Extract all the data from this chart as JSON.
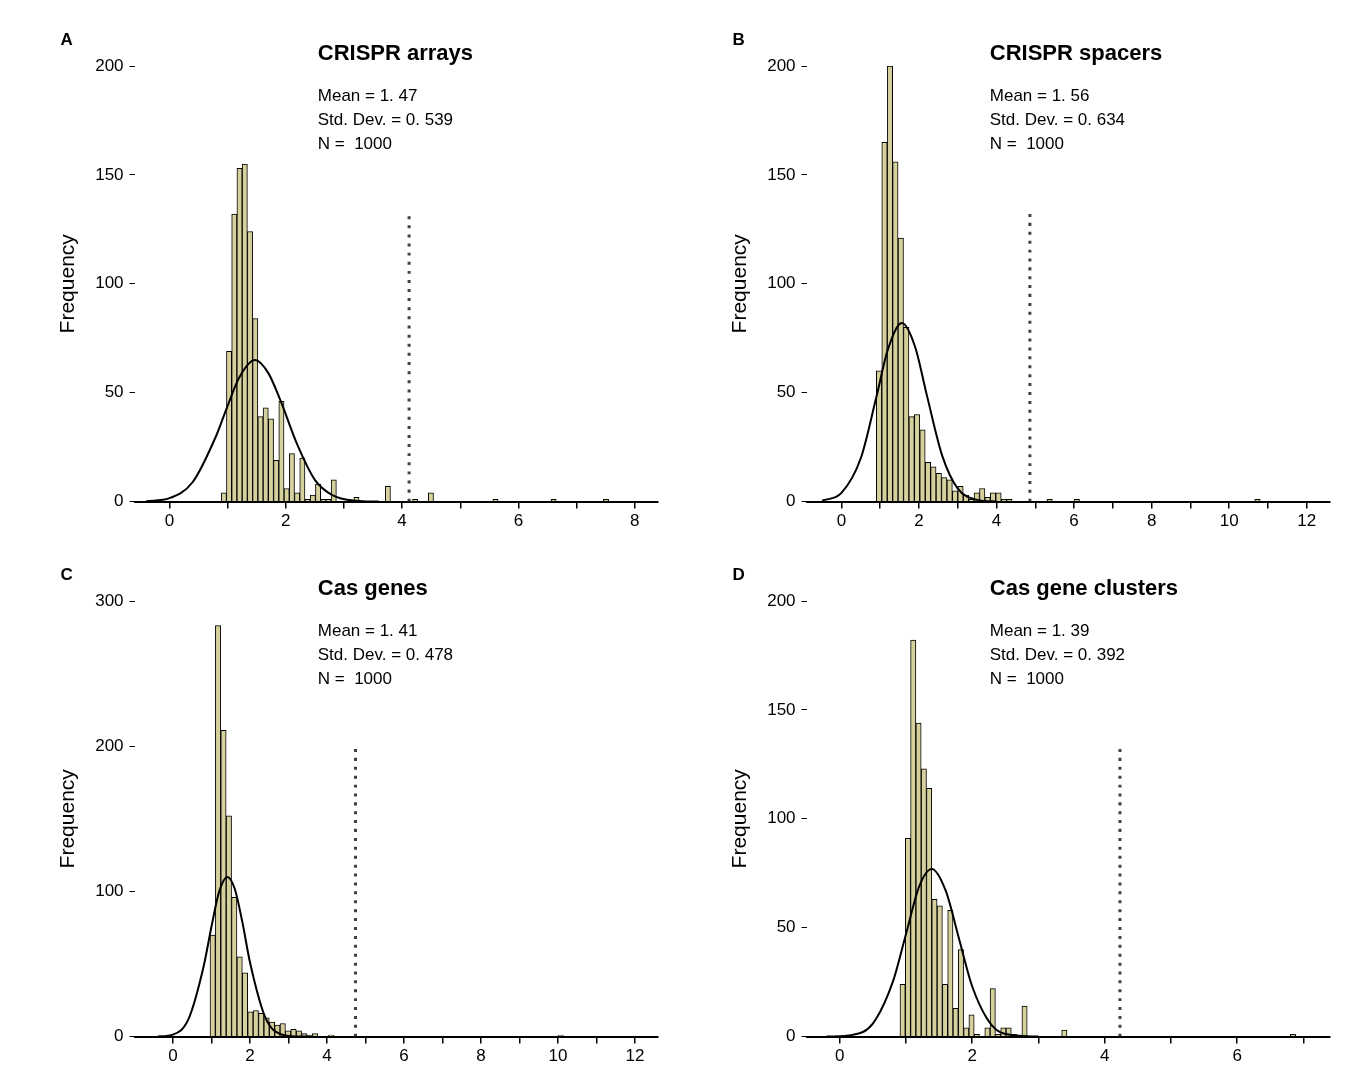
{
  "chart_data": [
    {
      "type": "histogram",
      "title": "CRISPR arrays",
      "ylabel": "Frequency",
      "annotations": [
        "A",
        "Mean = 1. 47",
        "Std. Dev. = 0. 539",
        "N =  1000"
      ],
      "xlim": [
        -0.6,
        8.4
      ],
      "xticks": [
        0,
        {
          "value": 1,
          "label": null
        },
        2,
        {
          "value": 3,
          "label": null
        },
        4,
        {
          "value": 5,
          "label": null
        },
        6,
        {
          "value": 7,
          "label": null
        },
        8
      ],
      "ylim": [
        0,
        200
      ],
      "yticks": [
        0,
        50,
        100,
        150,
        200
      ],
      "grid": false,
      "legend": false,
      "series": [
        {
          "type": "histogram",
          "color": "#d6d19c",
          "bins": [
            0.89,
            0.98,
            1.07,
            1.16,
            1.25,
            1.34,
            1.43,
            1.52,
            1.61,
            1.7,
            1.79,
            1.88,
            1.97,
            2.06,
            2.15,
            2.24,
            2.33,
            2.42,
            2.51,
            2.6,
            2.69,
            2.78,
            2.87,
            3.17,
            3.26,
            3.71,
            3.8,
            4.18,
            4.27,
            4.45,
            4.54,
            5.56,
            5.65,
            6.56,
            6.65,
            7.46,
            7.55
          ],
          "values": [
            4,
            69,
            132,
            153,
            155,
            124,
            84,
            39,
            43,
            38,
            19,
            46,
            6,
            22,
            4,
            20,
            1,
            3,
            8,
            1,
            1,
            10,
            0,
            2,
            0,
            7,
            0,
            1,
            0,
            4,
            0,
            1,
            0,
            1,
            0,
            1
          ]
        },
        {
          "type": "line",
          "color": "#000000",
          "x": [
            -0.4,
            0,
            0.4,
            0.8,
            1.0,
            1.2,
            1.47,
            1.7,
            1.9,
            2.2,
            2.5,
            2.8,
            3.2,
            3.6
          ],
          "values": [
            0.2,
            1.6,
            9,
            30,
            44,
            57,
            65,
            59,
            47,
            26,
            10,
            3,
            0.4,
            0
          ]
        },
        {
          "type": "line",
          "color": "#404040",
          "line_style": "dotted",
          "x": [
            4.12,
            4.12
          ],
          "values": [
            0,
            131
          ]
        }
      ]
    },
    {
      "type": "histogram",
      "title": "CRISPR spacers",
      "ylabel": "Frequency",
      "annotations": [
        "B",
        "Mean = 1. 56",
        "Std. Dev. = 0. 634",
        "N =  1000"
      ],
      "xlim": [
        -0.9,
        12.6
      ],
      "xticks": [
        0,
        {
          "value": 1,
          "label": null
        },
        2,
        {
          "value": 3,
          "label": null
        },
        4,
        {
          "value": 5,
          "label": null
        },
        6,
        {
          "value": 7,
          "label": null
        },
        8,
        {
          "value": 9,
          "label": null
        },
        10,
        {
          "value": 11,
          "label": null
        },
        12
      ],
      "ylim": [
        0,
        200
      ],
      "yticks": [
        0,
        50,
        100,
        150,
        200
      ],
      "grid": false,
      "legend": false,
      "series": [
        {
          "type": "histogram",
          "color": "#d6d19c",
          "bins": [
            0.9,
            1.04,
            1.18,
            1.32,
            1.46,
            1.6,
            1.74,
            1.88,
            2.02,
            2.16,
            2.3,
            2.44,
            2.58,
            2.72,
            2.86,
            3.0,
            3.14,
            3.28,
            3.42,
            3.56,
            3.7,
            3.84,
            3.98,
            4.12,
            4.26,
            4.4,
            5.3,
            5.44,
            6.0,
            6.14,
            10.66,
            10.8
          ],
          "values": [
            60,
            165,
            200,
            156,
            121,
            80,
            39,
            40,
            33,
            18,
            16,
            13,
            11,
            10,
            5,
            7,
            3,
            1,
            4,
            6,
            2,
            4,
            4,
            1,
            1,
            0,
            1,
            0,
            1,
            0,
            1
          ]
        },
        {
          "type": "line",
          "color": "#000000",
          "x": [
            -0.5,
            0,
            0.5,
            0.9,
            1.2,
            1.56,
            1.9,
            2.2,
            2.6,
            3.0,
            3.5,
            4.0
          ],
          "values": [
            0.4,
            4,
            20,
            48,
            70,
            82,
            71,
            49,
            21,
            6,
            0.8,
            0
          ]
        },
        {
          "type": "line",
          "color": "#404040",
          "line_style": "dotted",
          "x": [
            4.86,
            4.86
          ],
          "values": [
            0,
            132
          ]
        }
      ]
    },
    {
      "type": "histogram",
      "title": "Cas genes",
      "ylabel": "Frequency",
      "annotations": [
        "C",
        "Mean = 1. 41",
        "Std. Dev. = 0. 478",
        "N =  1000"
      ],
      "xlim": [
        -1.0,
        12.6
      ],
      "xticks": [
        0,
        {
          "value": 1,
          "label": null
        },
        2,
        {
          "value": 3,
          "label": null
        },
        4,
        {
          "value": 5,
          "label": null
        },
        6,
        {
          "value": 7,
          "label": null
        },
        8,
        {
          "value": 9,
          "label": null
        },
        10,
        {
          "value": 11,
          "label": null
        },
        12
      ],
      "ylim": [
        0,
        300
      ],
      "yticks": [
        0,
        100,
        200,
        300
      ],
      "grid": false,
      "legend": false,
      "series": [
        {
          "type": "histogram",
          "color": "#d6d19c",
          "bins": [
            0.96,
            1.1,
            1.24,
            1.38,
            1.52,
            1.66,
            1.8,
            1.94,
            2.08,
            2.22,
            2.36,
            2.5,
            2.64,
            2.78,
            2.92,
            3.06,
            3.2,
            3.34,
            3.48,
            3.62,
            3.76,
            3.9,
            4.04,
            4.18,
            10.0,
            10.14
          ],
          "values": [
            70,
            283,
            211,
            152,
            96,
            55,
            44,
            17,
            18,
            16,
            13,
            10,
            8,
            9,
            4,
            5,
            4,
            2,
            1,
            2,
            0,
            0,
            1,
            0,
            1
          ]
        },
        {
          "type": "line",
          "color": "#000000",
          "x": [
            -0.4,
            0,
            0.4,
            0.8,
            1.0,
            1.2,
            1.41,
            1.6,
            1.8,
            2.0,
            2.4,
            2.8,
            3.2,
            3.6
          ],
          "values": [
            0.1,
            1.4,
            12,
            49,
            76,
            100,
            110,
            102,
            79,
            51,
            13,
            1.6,
            0.1,
            0
          ]
        },
        {
          "type": "line",
          "color": "#404040",
          "line_style": "dotted",
          "x": [
            4.74,
            4.74
          ],
          "values": [
            0,
            198
          ]
        }
      ]
    },
    {
      "type": "histogram",
      "title": "Cas gene clusters",
      "ylabel": "Frequency",
      "annotations": [
        "D",
        "Mean = 1. 39",
        "Std. Dev. = 0. 392",
        "N =  1000"
      ],
      "xlim": [
        -0.5,
        7.4
      ],
      "xticks": [
        0,
        {
          "value": 1,
          "label": null
        },
        2,
        {
          "value": 3,
          "label": null
        },
        4,
        {
          "value": 5,
          "label": null
        },
        6,
        {
          "value": 7,
          "label": null
        }
      ],
      "ylim": [
        0,
        200
      ],
      "yticks": [
        0,
        50,
        100,
        150,
        200
      ],
      "grid": false,
      "legend": false,
      "series": [
        {
          "type": "histogram",
          "color": "#d6d19c",
          "bins": [
            0.91,
            0.99,
            1.07,
            1.15,
            1.23,
            1.31,
            1.39,
            1.47,
            1.55,
            1.63,
            1.71,
            1.79,
            1.87,
            1.95,
            2.03,
            2.11,
            2.19,
            2.27,
            2.35,
            2.43,
            2.51,
            2.59,
            2.67,
            2.75,
            2.83,
            3.35,
            3.43,
            6.8,
            6.88
          ],
          "values": [
            24,
            91,
            182,
            144,
            123,
            114,
            63,
            60,
            24,
            58,
            13,
            40,
            4,
            10,
            1,
            0,
            4,
            22,
            1,
            4,
            4,
            1,
            0,
            14,
            0,
            3,
            0,
            1
          ]
        },
        {
          "type": "line",
          "color": "#000000",
          "x": [
            -0.2,
            0.2,
            0.5,
            0.8,
            1.0,
            1.2,
            1.39,
            1.6,
            1.8,
            2.0,
            2.3,
            2.6,
            3.0
          ],
          "values": [
            0,
            0.8,
            6,
            25,
            47,
            69,
            77,
            67,
            45,
            23,
            5,
            0.7,
            0
          ]
        },
        {
          "type": "line",
          "color": "#404040",
          "line_style": "dotted",
          "x": [
            4.23,
            4.23
          ],
          "values": [
            0,
            132
          ]
        }
      ]
    }
  ]
}
